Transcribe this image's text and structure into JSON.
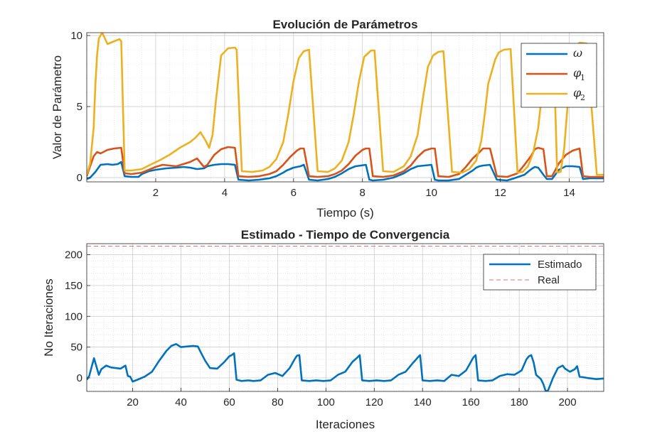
{
  "chart_data": [
    {
      "type": "line",
      "title": "Evolución de Parámetros",
      "xlabel": "Tiempo (s)",
      "ylabel": "Valor de Parámetro",
      "xlim": [
        0,
        15
      ],
      "ylim": [
        -0.3,
        10.2
      ],
      "xticks": [
        2,
        4,
        6,
        8,
        10,
        12,
        14
      ],
      "yticks": [
        0,
        5,
        10
      ],
      "grid": true,
      "legend_location": "top-right",
      "series": [
        {
          "name": "ω",
          "legend_symbol": "ω",
          "legend_sub": "",
          "color": "#0072BD",
          "x": [
            0,
            0.1,
            0.25,
            0.4,
            0.6,
            0.75,
            0.9,
            1.0,
            1.1,
            1.3,
            1.5,
            1.6,
            1.8,
            2.0,
            2.3,
            2.6,
            2.8,
            3.0,
            3.2,
            3.4,
            3.5,
            3.7,
            3.9,
            4.1,
            4.3,
            4.4,
            4.7,
            5.0,
            5.3,
            5.5,
            5.7,
            5.8,
            6.0,
            6.2,
            6.3,
            6.45,
            6.7,
            7.0,
            7.2,
            7.4,
            7.6,
            7.8,
            8.1,
            8.2,
            8.3,
            8.6,
            8.9,
            9.2,
            9.4,
            9.6,
            9.8,
            10.0,
            10.1,
            10.2,
            10.5,
            10.8,
            11.0,
            11.2,
            11.3,
            11.4,
            11.5,
            11.7,
            11.9,
            12.2,
            12.4,
            12.7,
            12.9,
            13.0,
            13.1,
            13.25,
            13.35,
            13.5,
            13.7,
            13.9,
            14.1,
            14.3,
            14.4,
            14.6,
            15.0
          ],
          "y": [
            -0.1,
            0.0,
            0.4,
            0.9,
            0.95,
            0.9,
            0.95,
            1.1,
            0.1,
            0.05,
            0.05,
            0.25,
            0.45,
            0.55,
            0.65,
            0.7,
            0.75,
            0.7,
            0.6,
            0.65,
            0.8,
            0.9,
            0.95,
            0.95,
            0.9,
            -0.15,
            -0.2,
            -0.15,
            -0.05,
            0.1,
            0.35,
            0.5,
            0.7,
            0.8,
            0.9,
            -0.15,
            -0.2,
            -0.1,
            0.05,
            0.3,
            0.6,
            0.8,
            0.9,
            -0.15,
            -0.2,
            -0.15,
            0.0,
            0.3,
            0.6,
            0.8,
            0.85,
            0.9,
            -0.15,
            -0.2,
            -0.2,
            -0.1,
            0.2,
            0.5,
            0.7,
            0.8,
            0.85,
            0.9,
            -0.15,
            -0.2,
            -0.05,
            0.2,
            0.6,
            0.75,
            0.7,
            0.2,
            -0.1,
            -0.1,
            0.55,
            0.8,
            0.8,
            0.75,
            -0.1,
            -0.05,
            -0.05
          ]
        },
        {
          "name": "φ1",
          "legend_symbol": "φ",
          "legend_sub": "1",
          "color": "#D95319",
          "x": [
            0,
            0.1,
            0.2,
            0.3,
            0.4,
            0.6,
            0.8,
            1.0,
            1.1,
            1.3,
            1.6,
            1.8,
            2.0,
            2.2,
            2.4,
            2.6,
            2.8,
            3.0,
            3.2,
            3.4,
            3.5,
            3.7,
            3.9,
            4.1,
            4.3,
            4.4,
            4.7,
            5.0,
            5.3,
            5.5,
            5.7,
            5.9,
            6.1,
            6.2,
            6.3,
            6.45,
            6.7,
            7.0,
            7.2,
            7.4,
            7.6,
            7.8,
            8.0,
            8.1,
            8.2,
            8.3,
            8.6,
            8.9,
            9.2,
            9.4,
            9.6,
            9.8,
            10.0,
            10.1,
            10.2,
            10.5,
            10.8,
            11.0,
            11.2,
            11.4,
            11.5,
            11.7,
            11.9,
            12.2,
            12.5,
            12.7,
            12.9,
            13.0,
            13.1,
            13.25,
            13.35,
            13.5,
            13.7,
            13.9,
            14.1,
            14.3,
            14.4,
            14.6,
            15.0
          ],
          "y": [
            0.1,
            0.8,
            1.5,
            1.8,
            1.7,
            1.95,
            2.05,
            2.1,
            0.3,
            0.25,
            0.35,
            0.55,
            0.75,
            0.9,
            0.85,
            0.8,
            0.95,
            1.1,
            1.35,
            0.75,
            0.9,
            1.6,
            2.0,
            2.15,
            2.1,
            0.1,
            0.05,
            0.1,
            0.25,
            0.45,
            0.9,
            1.45,
            1.9,
            2.05,
            2.05,
            0.1,
            0.05,
            0.1,
            0.25,
            0.5,
            0.95,
            1.55,
            1.95,
            2.05,
            2.05,
            0.1,
            0.05,
            0.15,
            0.45,
            0.85,
            1.45,
            1.9,
            2.05,
            2.05,
            0.1,
            0.05,
            0.25,
            0.75,
            1.35,
            1.8,
            2.05,
            2.05,
            0.1,
            0.05,
            0.3,
            0.9,
            1.55,
            2.0,
            2.1,
            2.0,
            0.1,
            0.1,
            1.0,
            1.6,
            1.9,
            2.05,
            0.1,
            0.05,
            0.05
          ]
        },
        {
          "name": "φ2",
          "legend_symbol": "φ",
          "legend_sub": "2",
          "color": "#EDB120",
          "x": [
            0,
            0.1,
            0.2,
            0.25,
            0.3,
            0.35,
            0.45,
            0.6,
            0.8,
            0.95,
            1.0,
            1.1,
            1.3,
            1.6,
            1.8,
            2.1,
            2.4,
            2.7,
            3.0,
            3.15,
            3.3,
            3.45,
            3.55,
            3.65,
            3.75,
            3.9,
            4.1,
            4.3,
            4.35,
            4.5,
            4.8,
            5.1,
            5.3,
            5.5,
            5.7,
            5.85,
            6.0,
            6.15,
            6.3,
            6.45,
            6.7,
            7.0,
            7.2,
            7.4,
            7.6,
            7.75,
            7.9,
            8.05,
            8.25,
            8.35,
            8.6,
            8.9,
            9.2,
            9.4,
            9.6,
            9.75,
            9.9,
            10.05,
            10.2,
            10.35,
            10.6,
            10.9,
            11.1,
            11.3,
            11.45,
            11.55,
            11.65,
            11.85,
            11.95,
            12.1,
            12.3,
            12.5,
            12.65,
            12.8,
            12.95,
            13.1,
            13.2,
            13.3,
            13.45,
            13.55,
            13.65,
            13.75,
            13.85,
            13.95,
            14.05,
            14.15,
            14.3,
            14.5,
            14.8,
            15.0
          ],
          "y": [
            0.2,
            1.0,
            3.5,
            6.5,
            8.6,
            9.8,
            10.2,
            9.4,
            9.6,
            9.75,
            9.6,
            0.5,
            0.5,
            0.6,
            0.85,
            1.2,
            1.6,
            2.1,
            2.5,
            2.8,
            3.2,
            2.6,
            2.1,
            3.0,
            5.5,
            8.6,
            9.1,
            9.15,
            9.0,
            0.45,
            0.4,
            0.5,
            0.75,
            1.3,
            2.5,
            4.5,
            6.8,
            8.4,
            8.9,
            9.0,
            0.45,
            0.4,
            0.65,
            1.2,
            2.5,
            4.5,
            6.8,
            8.5,
            8.95,
            8.95,
            0.45,
            0.4,
            0.8,
            1.5,
            3.0,
            5.5,
            7.8,
            8.6,
            8.85,
            8.9,
            0.4,
            0.35,
            0.6,
            1.2,
            2.6,
            4.5,
            6.6,
            8.3,
            8.8,
            9.0,
            9.05,
            0.35,
            0.4,
            0.8,
            1.7,
            3.5,
            5.8,
            7.8,
            8.4,
            8.6,
            0.35,
            0.4,
            2.0,
            5.0,
            7.8,
            9.2,
            9.5,
            9.45,
            0.2,
            0.2
          ]
        }
      ]
    },
    {
      "type": "line",
      "title": "Estimado - Tiempo de Convergencia",
      "xlabel": "Iteraciones",
      "ylabel": "No Iteraciones",
      "xlim": [
        1,
        215
      ],
      "ylim": [
        -22,
        218
      ],
      "xticks": [
        20,
        40,
        60,
        80,
        100,
        120,
        140,
        160,
        180,
        200
      ],
      "yticks": [
        0,
        50,
        100,
        150,
        200
      ],
      "grid": true,
      "legend_location": "top-right",
      "series": [
        {
          "name": "Estimado",
          "color": "#0072BD",
          "style": "solid",
          "x": [
            1,
            2,
            4,
            6,
            7,
            9,
            11,
            13,
            15,
            17,
            18,
            19,
            20,
            22,
            25,
            28,
            31,
            34,
            36,
            38,
            40,
            45,
            47,
            48,
            50,
            52,
            55,
            58,
            60,
            61,
            62,
            63,
            65,
            68,
            70,
            73,
            76,
            79,
            82,
            85,
            87,
            88,
            89,
            90,
            93,
            96,
            99,
            102,
            105,
            108,
            111,
            113,
            114,
            115,
            118,
            121,
            124,
            127,
            130,
            133,
            136,
            138,
            139,
            140,
            143,
            146,
            149,
            152,
            155,
            158,
            160,
            161,
            162,
            163,
            166,
            169,
            172,
            175,
            178,
            181,
            183,
            184,
            185,
            186,
            187,
            189,
            190,
            191,
            192,
            194,
            196,
            198,
            199,
            201,
            203,
            204,
            205,
            208,
            212,
            215
          ],
          "y": [
            -3,
            3,
            32,
            5,
            14,
            20,
            17,
            16,
            15,
            20,
            3,
            2,
            -6,
            -3,
            2,
            10,
            28,
            44,
            52,
            55,
            50,
            52,
            51,
            43,
            28,
            16,
            15,
            26,
            35,
            37,
            40,
            -3,
            -5,
            -4,
            -5,
            -4,
            5,
            8,
            3,
            16,
            30,
            36,
            37,
            -4,
            -5,
            -4,
            -5,
            -4,
            5,
            10,
            26,
            33,
            37,
            -4,
            -5,
            -4,
            -5,
            -4,
            5,
            10,
            24,
            33,
            37,
            -4,
            -5,
            -4,
            -5,
            5,
            3,
            12,
            26,
            33,
            37,
            -4,
            -5,
            -4,
            3,
            6,
            5,
            12,
            30,
            35,
            37,
            25,
            5,
            -2,
            -10,
            -22,
            -20,
            0,
            16,
            20,
            15,
            10,
            14,
            19,
            2,
            0,
            -2,
            -1
          ]
        },
        {
          "name": "Real",
          "color": "#E0707A",
          "style": "dashed",
          "x": [
            1,
            215
          ],
          "y": [
            214,
            214
          ]
        }
      ]
    }
  ]
}
